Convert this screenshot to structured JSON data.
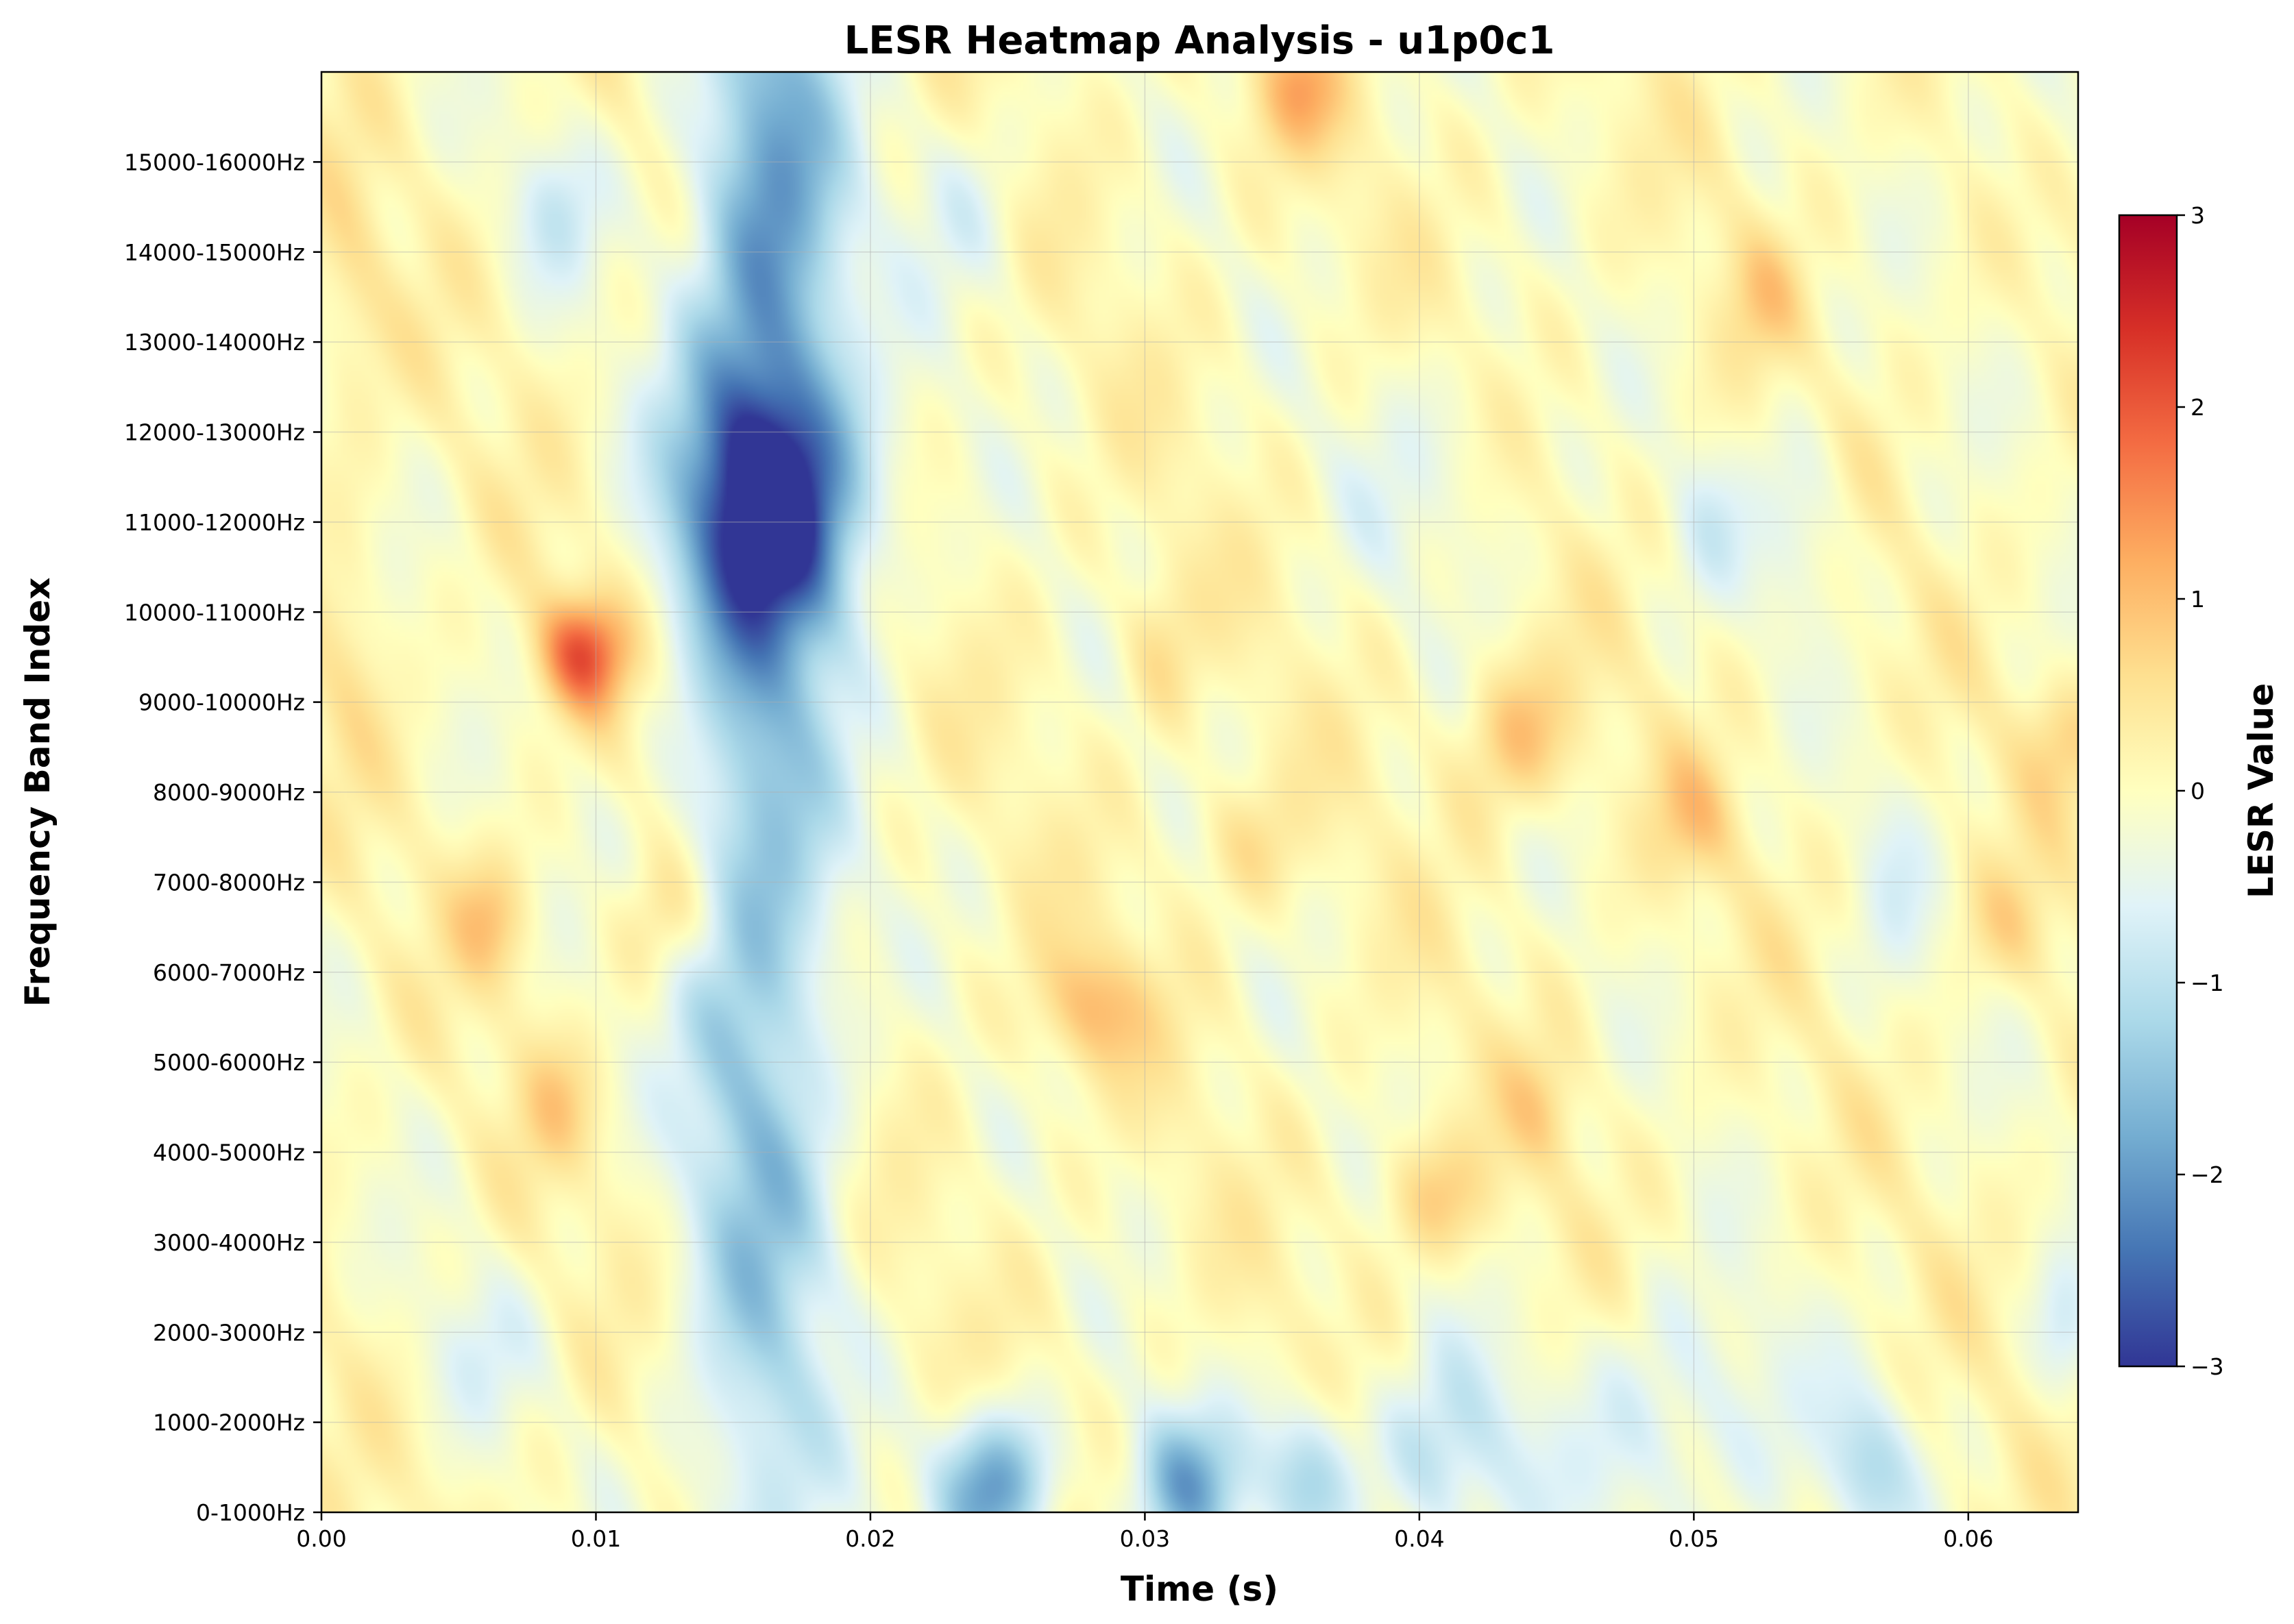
{
  "chart_data": {
    "type": "heatmap",
    "title": "LESR Heatmap Analysis - u1p0c1",
    "xlabel": "Time (s)",
    "ylabel": "Frequency Band Index",
    "xlim": [
      0,
      0.064
    ],
    "x_ticks": [
      "0.00",
      "0.01",
      "0.02",
      "0.03",
      "0.04",
      "0.05",
      "0.06"
    ],
    "x_tick_values": [
      0,
      0.01,
      0.02,
      0.03,
      0.04,
      0.05,
      0.06
    ],
    "y_bands": [
      "0-1000Hz",
      "1000-2000Hz",
      "2000-3000Hz",
      "3000-4000Hz",
      "4000-5000Hz",
      "5000-6000Hz",
      "6000-7000Hz",
      "7000-8000Hz",
      "8000-9000Hz",
      "9000-10000Hz",
      "10000-11000Hz",
      "11000-12000Hz",
      "12000-13000Hz",
      "13000-14000Hz",
      "14000-15000Hz",
      "15000-16000Hz"
    ],
    "grid": true,
    "colormap": "RdYlBu_r",
    "colorbar": {
      "label": "LESR Value",
      "range": [
        -3,
        3
      ],
      "ticks": [
        "3",
        "2",
        "1",
        "0",
        "−1",
        "−2",
        "−3"
      ],
      "tick_values": [
        3,
        2,
        1,
        0,
        -1,
        -2,
        -3
      ],
      "stops": [
        "#313695",
        "#4575b4",
        "#74add1",
        "#abd9e9",
        "#e0f3f8",
        "#ffffbf",
        "#fee090",
        "#fdae61",
        "#f46d43",
        "#d73027",
        "#a50026"
      ]
    },
    "features": [
      {
        "t": 0.0165,
        "band": 11.2,
        "value": -2.4,
        "st": 0.0025,
        "sb": 1.0
      },
      {
        "t": 0.016,
        "band": 7.0,
        "value": -1.6,
        "st": 0.002,
        "sb": 7.0
      },
      {
        "t": 0.0165,
        "band": 14.5,
        "value": -1.2,
        "st": 0.002,
        "sb": 2.0
      },
      {
        "t": 0.0245,
        "band": 0.3,
        "value": -2.0,
        "st": 0.0015,
        "sb": 0.6
      },
      {
        "t": 0.0315,
        "band": 0.3,
        "value": -1.6,
        "st": 0.0015,
        "sb": 0.6
      },
      {
        "t": 0.036,
        "band": 0.4,
        "value": -1.3,
        "st": 0.0012,
        "sb": 0.6
      },
      {
        "t": 0.041,
        "band": 0.6,
        "value": -1.0,
        "st": 0.002,
        "sb": 0.8
      },
      {
        "t": 0.0495,
        "band": 1.0,
        "value": -0.8,
        "st": 0.003,
        "sb": 1.0
      },
      {
        "t": 0.0565,
        "band": 0.5,
        "value": -1.0,
        "st": 0.0012,
        "sb": 0.6
      },
      {
        "t": 0.0095,
        "band": 9.55,
        "value": 1.8,
        "st": 0.0012,
        "sb": 0.45
      },
      {
        "t": 0.0355,
        "band": 15.8,
        "value": 0.9,
        "st": 0.0012,
        "sb": 0.5
      },
      {
        "t": 0.028,
        "band": 5.6,
        "value": 0.9,
        "st": 0.0015,
        "sb": 0.5
      },
      {
        "t": 0.0435,
        "band": 8.6,
        "value": 0.9,
        "st": 0.0015,
        "sb": 0.6
      },
      {
        "t": 0.0405,
        "band": 3.5,
        "value": 0.7,
        "st": 0.0015,
        "sb": 0.5
      },
      {
        "t": 0.0062,
        "band": 6.6,
        "value": 0.7,
        "st": 0.001,
        "sb": 0.5
      },
      {
        "t": 0.0125,
        "band": 6.6,
        "value": 0.6,
        "st": 0.0012,
        "sb": 0.5
      },
      {
        "t": 0.0635,
        "band": 8.6,
        "value": 0.6,
        "st": 0.0012,
        "sb": 0.5
      },
      {
        "t": 0.05,
        "band": 7.7,
        "value": 0.6,
        "st": 0.0012,
        "sb": 0.5
      },
      {
        "t": 0.0305,
        "band": 9.6,
        "value": 0.5,
        "st": 0.001,
        "sb": 0.6
      },
      {
        "t": 0.0525,
        "band": 13.5,
        "value": 0.5,
        "st": 0.001,
        "sb": 0.5
      },
      {
        "t": 0.0615,
        "band": 6.5,
        "value": 0.5,
        "st": 0.0012,
        "sb": 0.5
      },
      {
        "t": 0.001,
        "band": 13.5,
        "value": 0.4,
        "st": 0.001,
        "sb": 1.0
      },
      {
        "t": 0.001,
        "band": 9.8,
        "value": 0.4,
        "st": 0.001,
        "sb": 1.0
      },
      {
        "t": 0.0085,
        "band": 4.5,
        "value": 0.5,
        "st": 0.001,
        "sb": 0.5
      },
      {
        "t": 0.0335,
        "band": 7.4,
        "value": 0.5,
        "st": 0.0015,
        "sb": 0.5
      },
      {
        "t": 0.0445,
        "band": 4.5,
        "value": 0.5,
        "st": 0.001,
        "sb": 0.5
      },
      {
        "t": 0.0055,
        "band": 1.8,
        "value": -0.5,
        "st": 0.0015,
        "sb": 0.6
      },
      {
        "t": 0.0085,
        "band": 14.5,
        "value": -0.7,
        "st": 0.0012,
        "sb": 0.6
      },
      {
        "t": 0.0235,
        "band": 14.5,
        "value": -0.5,
        "st": 0.0015,
        "sb": 0.8
      },
      {
        "t": 0.0405,
        "band": 11.5,
        "value": -0.4,
        "st": 0.0025,
        "sb": 1.0
      },
      {
        "t": 0.054,
        "band": 11.0,
        "value": -0.6,
        "st": 0.0012,
        "sb": 0.8
      },
      {
        "t": 0.0505,
        "band": 11.0,
        "value": -0.5,
        "st": 0.001,
        "sb": 0.6
      },
      {
        "t": 0.0573,
        "band": 7.0,
        "value": -0.4,
        "st": 0.001,
        "sb": 1.0
      },
      {
        "t": 0.0635,
        "band": 2.0,
        "value": -0.6,
        "st": 0.0008,
        "sb": 0.6
      },
      {
        "t": 0.0625,
        "band": 15.5,
        "value": -0.4,
        "st": 0.0015,
        "sb": 0.8
      }
    ]
  }
}
